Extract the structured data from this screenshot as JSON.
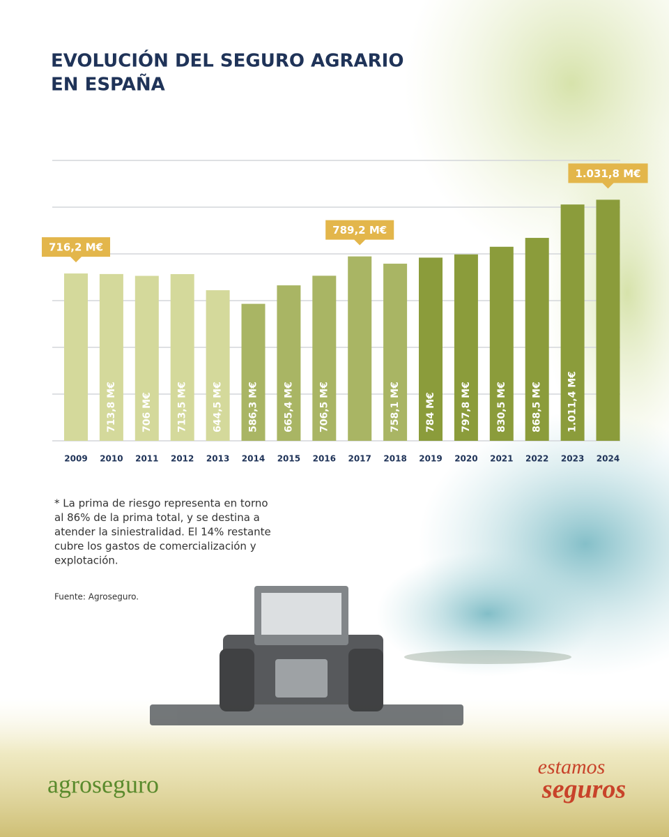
{
  "chart_data": {
    "type": "bar",
    "title": [
      "EVOLUCIÓN DEL SEGURO AGRARIO",
      "EN ESPAÑA"
    ],
    "categories": [
      "2009",
      "2010",
      "2011",
      "2012",
      "2013",
      "2014",
      "2015",
      "2016",
      "2017",
      "2018",
      "2019",
      "2020",
      "2021",
      "2022",
      "2023",
      "2024"
    ],
    "values": [
      716.2,
      713.8,
      706,
      713.5,
      644.5,
      586.3,
      665.4,
      706.5,
      789.2,
      758.1,
      784,
      797.8,
      830.5,
      868.5,
      1011.4,
      1031.8
    ],
    "value_labels": [
      "716,2 M€",
      "713,8 M€",
      "706 M€",
      "713,5 M€",
      "644,5 M€",
      "586,3 M€",
      "665,4 M€",
      "706,5 M€",
      "789,2 M€",
      "758,1 M€",
      "784 M€",
      "797,8 M€",
      "830,5 M€",
      "868,5 M€",
      "1.011,4 M€",
      "1.031,8 M€"
    ],
    "colors": [
      "#d4d99b",
      "#d4d99b",
      "#d4d99b",
      "#d4d99b",
      "#d4d99b",
      "#a9b564",
      "#a9b564",
      "#a9b564",
      "#a9b564",
      "#a9b564",
      "#8b9c3b",
      "#8b9c3b",
      "#8b9c3b",
      "#8b9c3b",
      "#8b9c3b",
      "#8b9c3b"
    ],
    "callouts": [
      0,
      8,
      15
    ],
    "callout_color": "#e3b64b",
    "ylim": [
      0,
      1200
    ],
    "yticks": [
      0,
      200,
      400,
      600,
      800,
      1000,
      1200
    ],
    "grid": true
  },
  "note": [
    "* La prima de riesgo representa en torno",
    "al 86% de la prima total, y se destina a",
    "atender la siniestralidad. El 14% restante",
    "cubre los gastos de comercialización y",
    "explotación."
  ],
  "source": "Fuente: Agroseguro.",
  "logo": "agroseguro",
  "slogan": [
    "estamos",
    "seguros"
  ]
}
